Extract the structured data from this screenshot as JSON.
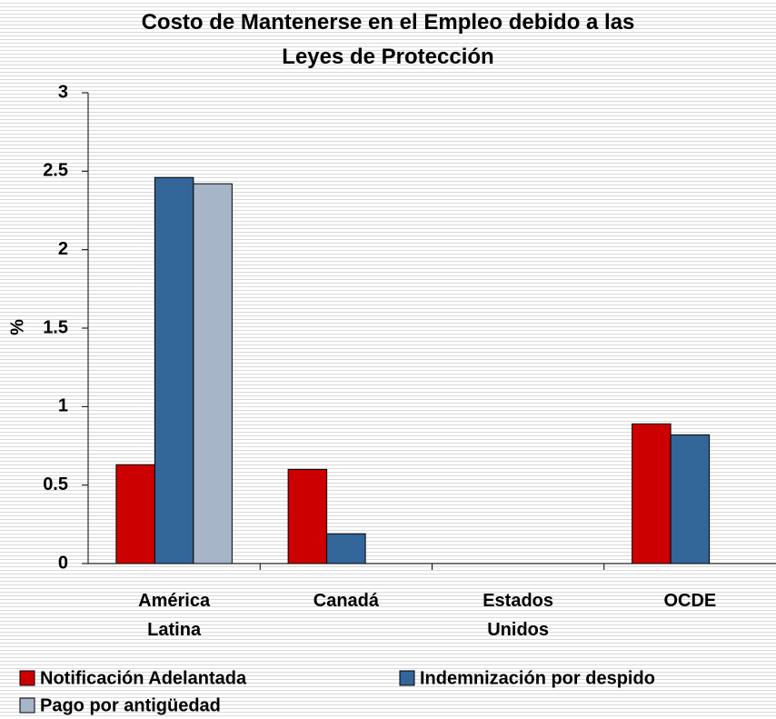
{
  "chart_data": {
    "type": "bar",
    "title": "Costo de Mantenerse en el Empleo debido a las Leyes de Protección",
    "ylabel": "%",
    "categories": [
      "América Latina",
      "Canadá",
      "Estados Unidos",
      "OCDE"
    ],
    "series": [
      {
        "name": "Notificación Adelantada",
        "color": "#cc0000",
        "values": [
          0.63,
          0.6,
          0,
          0.89
        ]
      },
      {
        "name": "Indemnización por despido",
        "color": "#336699",
        "values": [
          2.46,
          0.19,
          0,
          0.82
        ]
      },
      {
        "name": "Pago por antigüedad",
        "color": "#a6b5c8",
        "values": [
          2.42,
          0,
          0,
          0
        ]
      }
    ],
    "ylim": [
      0,
      3
    ],
    "yticks": [
      0,
      0.5,
      1,
      1.5,
      2,
      2.5,
      3
    ],
    "grid": false,
    "legend": "bottom"
  }
}
